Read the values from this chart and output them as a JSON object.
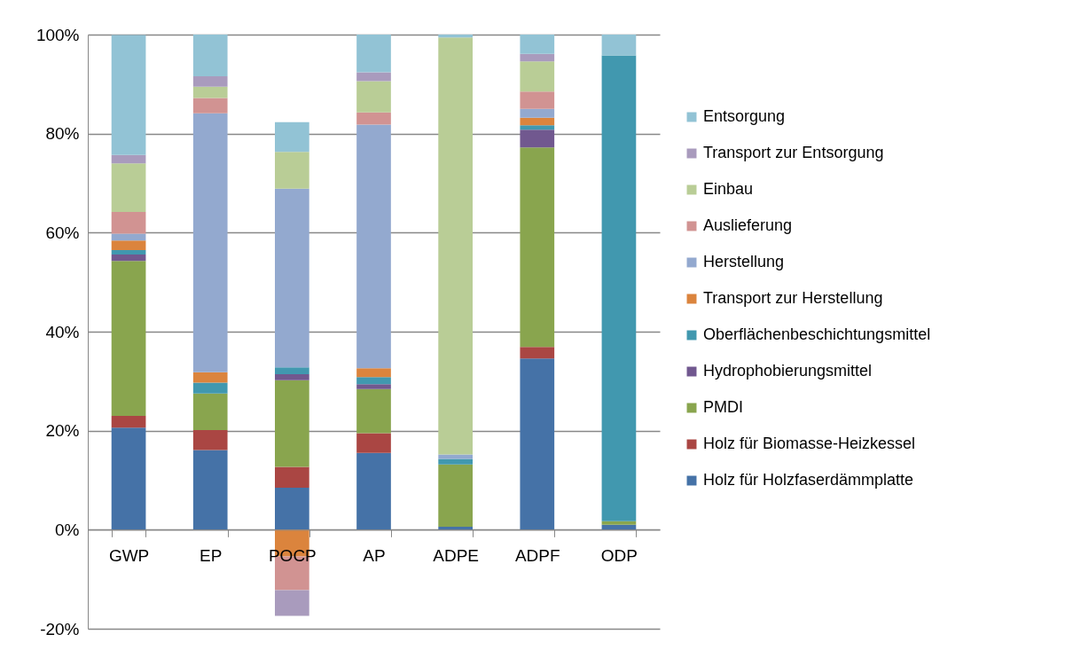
{
  "chart_data": {
    "type": "bar",
    "stacked": true,
    "categories": [
      "GWP",
      "EP",
      "POCP",
      "AP",
      "ADPE",
      "ADPF",
      "ODP"
    ],
    "series": [
      {
        "name": "Holz für Holzfaserdämmplatte",
        "color": "#4572a7",
        "values": [
          20.6,
          16.1,
          8.5,
          15.5,
          0.6,
          34.6,
          1.0
        ]
      },
      {
        "name": "Holz für Biomasse-Heizkessel",
        "color": "#aa4643",
        "values": [
          2.4,
          4.0,
          4.2,
          4.0,
          null,
          2.3,
          null
        ]
      },
      {
        "name": "PMDI",
        "color": "#89a54e",
        "values": [
          31.3,
          7.4,
          17.5,
          8.9,
          12.6,
          40.3,
          0.7
        ]
      },
      {
        "name": "Hydrophobierungsmittel",
        "color": "#71588f",
        "values": [
          1.3,
          null,
          1.2,
          1.0,
          null,
          3.6,
          null
        ]
      },
      {
        "name": "Oberflächenbeschichtungsmittel",
        "color": "#4198af",
        "values": [
          0.9,
          2.2,
          1.4,
          1.4,
          1.1,
          0.9,
          94.1
        ]
      },
      {
        "name": "Transport zur Herstellung",
        "color": "#db843d",
        "values": [
          1.9,
          2.1,
          -5.4,
          1.8,
          null,
          1.5,
          null
        ]
      },
      {
        "name": "Herstellung",
        "color": "#93a9cf",
        "values": [
          1.4,
          52.3,
          36.1,
          49.2,
          0.9,
          1.8,
          null
        ]
      },
      {
        "name": "Auslieferung",
        "color": "#d19392",
        "values": [
          4.4,
          3.1,
          -6.8,
          2.5,
          null,
          3.5,
          null
        ]
      },
      {
        "name": "Einbau",
        "color": "#b9cd96",
        "values": [
          9.8,
          2.3,
          7.4,
          6.3,
          84.2,
          6.1,
          null
        ]
      },
      {
        "name": "Transport zur Entsorgung",
        "color": "#a99bbd",
        "values": [
          1.7,
          2.1,
          -5.2,
          1.8,
          null,
          1.5,
          null
        ]
      },
      {
        "name": "Entsorgung",
        "color": "#92c3d5",
        "values": [
          24.2,
          8.4,
          6.0,
          7.6,
          0.6,
          3.9,
          4.2
        ]
      }
    ],
    "ylim": [
      -20,
      100
    ],
    "yticks": [
      {
        "value": -20,
        "label": "-20%"
      },
      {
        "value": 0,
        "label": "0%"
      },
      {
        "value": 20,
        "label": "20%"
      },
      {
        "value": 40,
        "label": "40%"
      },
      {
        "value": 60,
        "label": "60%"
      },
      {
        "value": 80,
        "label": "80%"
      },
      {
        "value": 100,
        "label": "100%"
      }
    ],
    "grid": "y",
    "legend": "right"
  }
}
